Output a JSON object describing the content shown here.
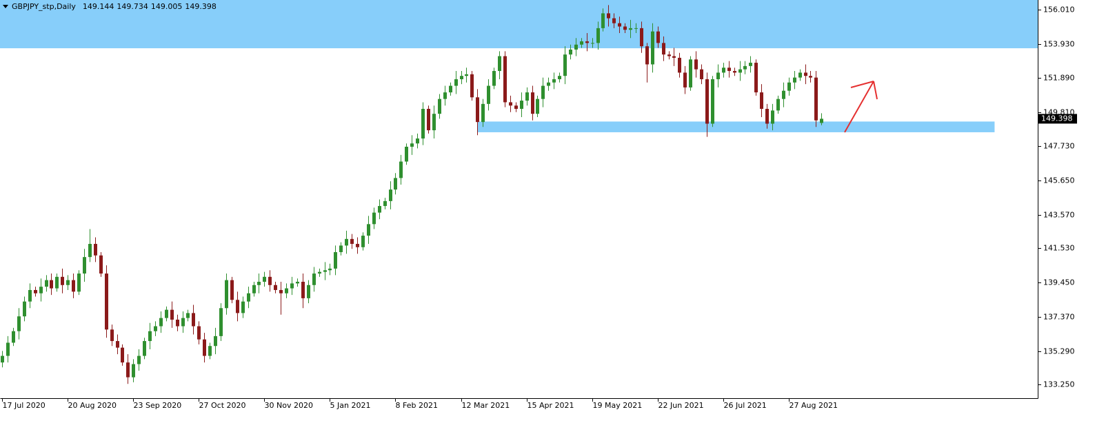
{
  "chart_data": {
    "type": "candlestick",
    "symbol": "GBPJPY_stp,Daily",
    "up_color": "#2f8f2f",
    "down_color": "#8b1a1a",
    "zone_color": "#87cefa",
    "ylim": [
      132.43,
      156.61
    ],
    "xlim": [
      -0.4,
      189.6
    ],
    "yticks": [
      {
        "value": 133.25,
        "label": "133.250"
      },
      {
        "value": 135.29,
        "label": "135.290"
      },
      {
        "value": 137.37,
        "label": "137.370"
      },
      {
        "value": 139.45,
        "label": "139.450"
      },
      {
        "value": 141.53,
        "label": "141.530"
      },
      {
        "value": 143.57,
        "label": "143.570"
      },
      {
        "value": 145.65,
        "label": "145.650"
      },
      {
        "value": 147.73,
        "label": "147.730"
      },
      {
        "value": 149.81,
        "label": "149.810"
      },
      {
        "value": 151.89,
        "label": "151.890"
      },
      {
        "value": 153.93,
        "label": "153.930"
      },
      {
        "value": 156.01,
        "label": "156.010"
      }
    ],
    "xticks": [
      {
        "value": 0,
        "label": "17 Jul 2020"
      },
      {
        "value": 12,
        "label": "20 Aug 2020"
      },
      {
        "value": 24,
        "label": "23 Sep 2020"
      },
      {
        "value": 36,
        "label": "27 Oct 2020"
      },
      {
        "value": 48,
        "label": "30 Nov 2020"
      },
      {
        "value": 60,
        "label": "5 Jan 2021"
      },
      {
        "value": 72,
        "label": "8 Feb 2021"
      },
      {
        "value": 84,
        "label": "12 Mar 2021"
      },
      {
        "value": 96,
        "label": "15 Apr 2021"
      },
      {
        "value": 108,
        "label": "19 May 2021"
      },
      {
        "value": 120,
        "label": "22 Jun 2021"
      },
      {
        "value": 132,
        "label": "26 Jul 2021"
      },
      {
        "value": 144,
        "label": "27 Aug 2021"
      }
    ],
    "zones": [
      {
        "from": 153.68,
        "to": 156.61,
        "start": -0.4,
        "end": 189.6
      },
      {
        "from": 148.58,
        "to": 149.23,
        "start": 87,
        "end": 181.7
      }
    ],
    "open": [
      134.6,
      135.0,
      135.8,
      136.5,
      137.4,
      138.3,
      139.0,
      138.8,
      139.2,
      139.6,
      139.1,
      139.8,
      139.3,
      139.6,
      138.9,
      140.0,
      141.0,
      141.8,
      141.1,
      140.0,
      136.6,
      135.9,
      135.5,
      134.6,
      133.7,
      134.5,
      135.0,
      135.9,
      136.5,
      136.8,
      137.3,
      137.8,
      137.2,
      136.8,
      137.3,
      137.6,
      136.8,
      136.0,
      135.0,
      135.6,
      136.2,
      137.9,
      139.6,
      138.4,
      137.6,
      138.3,
      138.8,
      139.3,
      139.5,
      139.8,
      139.3,
      139.0,
      138.8,
      139.1,
      139.4,
      139.5,
      138.5,
      139.3,
      140.0,
      140.1,
      140.2,
      140.3,
      141.3,
      141.7,
      142.1,
      141.8,
      141.6,
      142.3,
      143.0,
      143.7,
      144.1,
      144.4,
      145.1,
      145.8,
      146.8,
      147.7,
      147.9,
      148.2,
      150.0,
      148.7,
      149.7,
      150.6,
      151.0,
      151.4,
      151.8,
      152.0,
      152.1,
      150.7,
      149.2,
      150.3,
      151.4,
      152.3,
      153.2,
      150.4,
      150.2,
      150.0,
      150.5,
      151.0,
      149.7,
      150.6,
      151.4,
      151.6,
      151.8,
      152.0,
      153.3,
      153.6,
      153.9,
      154.1,
      154.0,
      154.0,
      154.9,
      155.8,
      155.5,
      155.2,
      155.0,
      154.8,
      154.9,
      154.9,
      153.8,
      152.7,
      154.7,
      154.0,
      153.3,
      153.2,
      153.1,
      152.2,
      151.3,
      153.0,
      152.4,
      151.8,
      149.1,
      151.8,
      152.2,
      152.5,
      152.3,
      152.2,
      152.4,
      152.6,
      152.8,
      151.0,
      150.0,
      149.1,
      149.9,
      150.6,
      151.1,
      151.6,
      151.9,
      152.2,
      152.0,
      151.9,
      149.144
    ],
    "high": [
      135.3,
      136.2,
      136.7,
      137.9,
      138.6,
      139.4,
      139.2,
      139.7,
      139.9,
      140.0,
      140.0,
      140.3,
      139.9,
      140.0,
      140.2,
      141.5,
      142.7,
      142.2,
      141.3,
      140.5,
      136.9,
      136.3,
      135.7,
      135.1,
      134.8,
      135.4,
      136.1,
      137.0,
      137.1,
      137.7,
      138.0,
      138.3,
      137.5,
      137.7,
      137.8,
      138.1,
      137.1,
      136.4,
      135.8,
      136.7,
      138.2,
      140.0,
      139.8,
      138.9,
      138.6,
      139.2,
      139.5,
      140.0,
      140.1,
      140.2,
      139.5,
      139.5,
      139.4,
      139.8,
      139.7,
      140.0,
      139.6,
      140.4,
      140.3,
      140.7,
      140.6,
      141.7,
      141.9,
      142.6,
      142.4,
      142.2,
      142.5,
      143.5,
      144.0,
      144.5,
      144.6,
      145.6,
      146.1,
      147.2,
      147.9,
      148.4,
      148.5,
      150.4,
      150.2,
      150.2,
      150.9,
      151.4,
      151.6,
      152.3,
      152.3,
      152.5,
      152.3,
      151.2,
      150.6,
      151.8,
      152.5,
      153.5,
      153.5,
      150.8,
      150.4,
      151.0,
      151.3,
      151.4,
      150.8,
      151.9,
      151.9,
      152.2,
      152.2,
      153.8,
      153.9,
      154.3,
      154.3,
      154.6,
      154.3,
      155.3,
      156.1,
      156.3,
      155.8,
      155.6,
      155.2,
      155.4,
      155.2,
      155.3,
      154.0,
      155.2,
      155.0,
      154.4,
      153.5,
      153.7,
      153.4,
      152.6,
      153.2,
      153.5,
      152.7,
      152.2,
      152.0,
      152.7,
      152.8,
      152.9,
      152.5,
      152.9,
      152.9,
      153.2,
      153.0,
      151.5,
      150.3,
      150.3,
      150.8,
      151.6,
      151.9,
      152.3,
      152.4,
      152.7,
      152.3,
      152.3,
      149.734
    ],
    "low": [
      134.3,
      134.6,
      135.6,
      136.0,
      137.1,
      137.9,
      138.6,
      138.3,
      138.9,
      138.7,
      138.9,
      138.8,
      139.0,
      138.5,
      138.7,
      139.5,
      140.7,
      140.7,
      139.8,
      136.1,
      135.6,
      135.1,
      134.4,
      133.3,
      133.4,
      134.1,
      134.8,
      135.4,
      136.2,
      136.4,
      137.1,
      136.7,
      136.5,
      136.4,
      137.1,
      136.3,
      135.7,
      134.6,
      134.8,
      135.1,
      135.9,
      137.5,
      138.2,
      137.1,
      137.3,
      137.9,
      138.6,
      138.8,
      139.2,
      138.9,
      138.8,
      137.5,
      138.5,
      138.7,
      139.2,
      137.9,
      138.2,
      138.9,
      139.8,
      139.6,
      139.9,
      139.9,
      141.1,
      141.2,
      141.5,
      141.2,
      141.4,
      141.8,
      142.7,
      143.3,
      143.9,
      143.9,
      144.8,
      145.4,
      146.6,
      147.2,
      147.6,
      147.8,
      148.5,
      148.2,
      149.4,
      150.2,
      150.8,
      150.9,
      151.5,
      151.6,
      150.5,
      148.4,
      148.9,
      149.9,
      151.2,
      151.8,
      150.1,
      149.8,
      149.8,
      149.5,
      150.2,
      149.3,
      149.5,
      150.1,
      151.1,
      151.2,
      151.6,
      151.5,
      153.0,
      153.2,
      153.7,
      153.5,
      153.7,
      153.6,
      154.7,
      155.0,
      154.9,
      154.6,
      154.6,
      154.3,
      154.6,
      153.4,
      151.6,
      152.2,
      153.7,
      152.9,
      153.0,
      152.6,
      151.9,
      150.9,
      151.1,
      151.9,
      151.5,
      148.3,
      148.9,
      151.3,
      151.9,
      151.9,
      152.0,
      151.7,
      152.1,
      152.2,
      150.8,
      149.5,
      148.8,
      148.7,
      149.7,
      150.1,
      150.8,
      151.2,
      151.7,
      151.5,
      151.6,
      148.9,
      149.005
    ],
    "close": [
      135.0,
      135.8,
      136.5,
      137.4,
      138.3,
      139.0,
      138.8,
      139.2,
      139.6,
      139.1,
      139.8,
      139.3,
      139.6,
      138.9,
      140.0,
      141.0,
      141.8,
      141.1,
      140.0,
      136.6,
      135.9,
      135.5,
      134.6,
      133.7,
      134.5,
      135.0,
      135.9,
      136.5,
      136.8,
      137.3,
      137.8,
      137.2,
      136.8,
      137.3,
      137.6,
      136.8,
      136.0,
      135.0,
      135.6,
      136.2,
      137.9,
      139.6,
      138.4,
      137.6,
      138.3,
      138.8,
      139.3,
      139.5,
      139.8,
      139.3,
      139.0,
      138.8,
      139.1,
      139.4,
      139.5,
      138.5,
      139.3,
      140.0,
      140.1,
      140.2,
      140.3,
      141.3,
      141.7,
      142.1,
      141.8,
      141.6,
      142.3,
      143.0,
      143.7,
      144.1,
      144.4,
      145.1,
      145.8,
      146.8,
      147.7,
      147.9,
      148.2,
      150.0,
      148.7,
      149.7,
      150.6,
      151.0,
      151.4,
      151.8,
      152.0,
      152.1,
      150.7,
      149.2,
      150.3,
      151.4,
      152.3,
      153.2,
      150.4,
      150.2,
      150.0,
      150.5,
      151.0,
      149.7,
      150.6,
      151.4,
      151.6,
      151.8,
      152.0,
      153.3,
      153.6,
      153.9,
      154.1,
      154.0,
      154.0,
      154.9,
      155.8,
      155.5,
      155.2,
      155.0,
      154.8,
      154.9,
      154.9,
      153.8,
      152.7,
      154.7,
      154.0,
      153.3,
      153.2,
      153.1,
      152.2,
      151.3,
      153.0,
      152.4,
      151.8,
      149.1,
      151.8,
      152.2,
      152.5,
      152.3,
      152.2,
      152.4,
      152.6,
      152.8,
      151.0,
      150.0,
      149.1,
      149.9,
      150.6,
      151.1,
      151.6,
      151.9,
      152.2,
      152.0,
      151.9,
      149.3,
      149.398
    ]
  }
}
